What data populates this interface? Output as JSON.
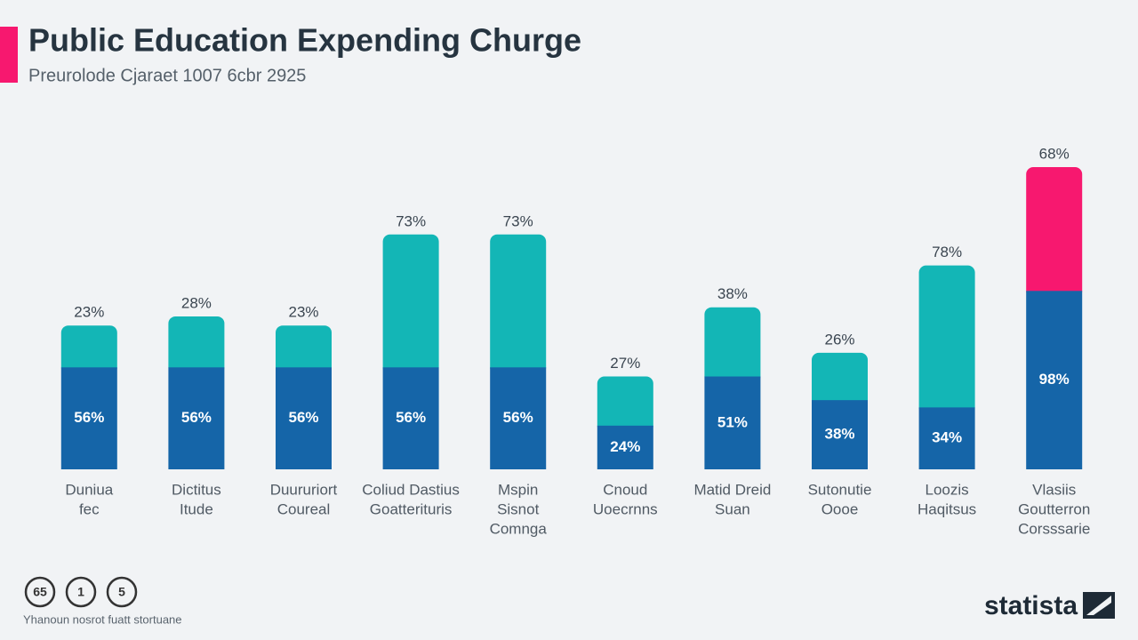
{
  "chart_data": {
    "type": "stacked-bar",
    "title": "Public Education Expending Churge",
    "subtitle": "Preurolode Cjaraet 1007 6cbr 2925",
    "categories": [
      [
        "Duniua",
        "fec"
      ],
      [
        "Dictitus",
        "Itude"
      ],
      [
        "Duururiort",
        "Coureal"
      ],
      [
        "Coliud Dastius",
        "Goatterituris"
      ],
      [
        "Mspin",
        "Sisnot",
        "Comnga"
      ],
      [
        "Cnoud",
        "Uoecrnns"
      ],
      [
        "Matid Dreid",
        "Suan"
      ],
      [
        "Sutonutie",
        "Oooe"
      ],
      [
        "Loozis",
        "Haqitsus"
      ],
      [
        "Vlasiis",
        "Goutterron",
        "Corsssarie"
      ]
    ],
    "series": [
      {
        "color": "#1565a8",
        "values": [
          56,
          56,
          56,
          56,
          56,
          24,
          51,
          38,
          34,
          98
        ],
        "value_labels": [
          "56%",
          "56%",
          "56%",
          "56%",
          "56%",
          "24%",
          "51%",
          "38%",
          "34%",
          "98%"
        ]
      },
      {
        "colors": [
          "#13b6b6",
          "#13b6b6",
          "#13b6b6",
          "#13b6b6",
          "#13b6b6",
          "#13b6b6",
          "#13b6b6",
          "#13b6b6",
          "#13b6b6",
          "#f7186f"
        ],
        "values": [
          23,
          28,
          23,
          73,
          73,
          27,
          38,
          26,
          78,
          68
        ],
        "value_labels": [
          "23%",
          "28%",
          "23%",
          "73%",
          "73%",
          "27%",
          "38%",
          "26%",
          "78%",
          "68%"
        ]
      }
    ],
    "footer": {
      "icons": [
        "65",
        "1",
        "5"
      ],
      "source": "Yhanoun nosrot fuatt stortuane",
      "logo": "statista"
    }
  }
}
